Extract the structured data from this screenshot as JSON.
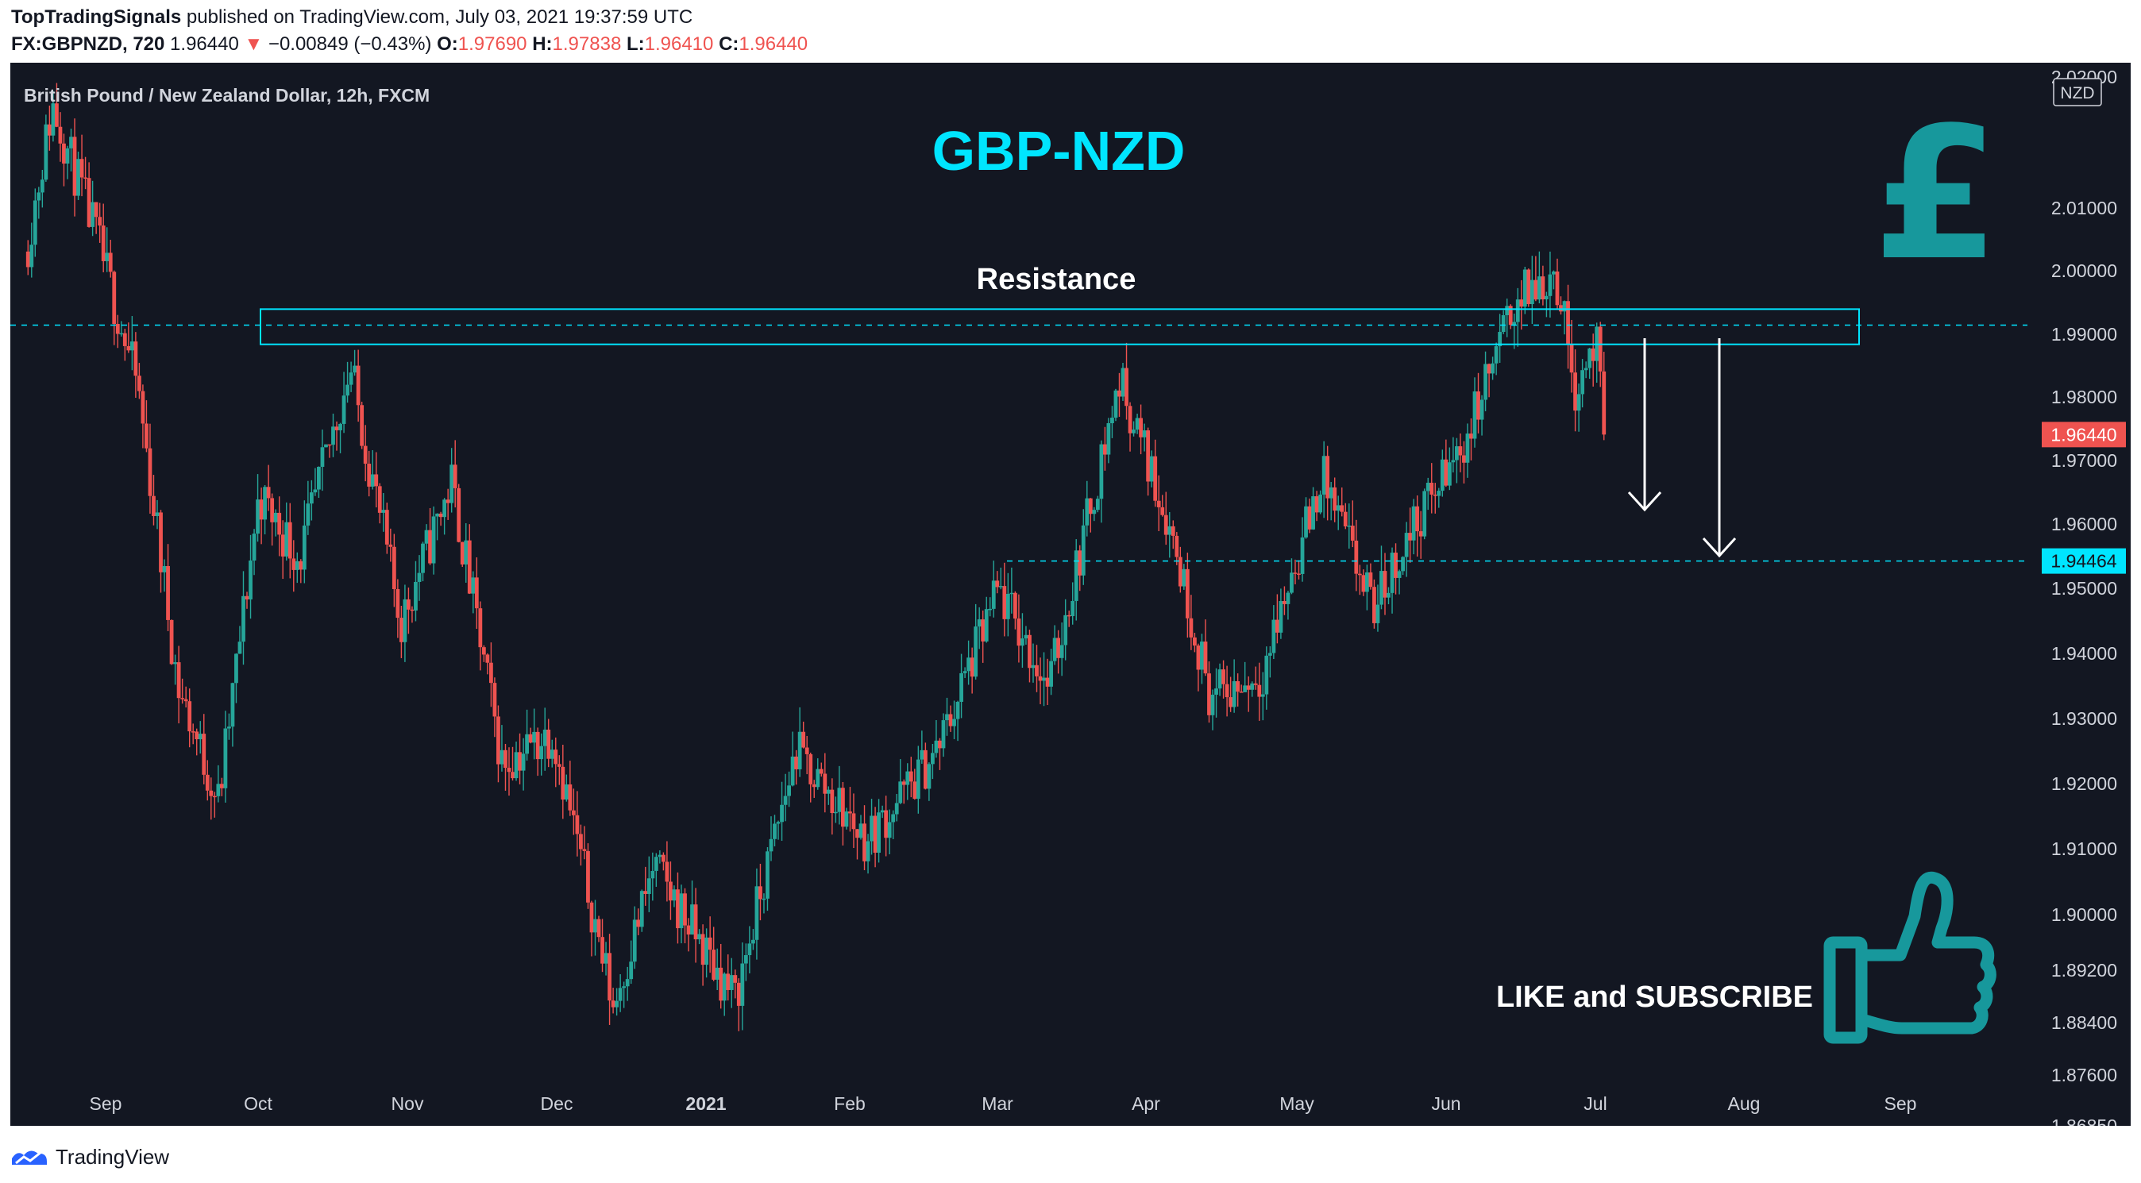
{
  "header": {
    "publisher": "TopTradingSignals",
    "published_text": " published on TradingView.com, July 03, 2021 19:37:59 UTC",
    "symbol": "FX:GBPNZD, 720",
    "price": "1.96440",
    "change_arrow": "▼",
    "change": "−0.00849 (−0.43%)",
    "o_label": "O:",
    "o_value": "1.97690",
    "h_label": "H:",
    "h_value": "1.97838",
    "l_label": "L:",
    "l_value": "1.96410",
    "c_label": "C:",
    "c_value": "1.96440"
  },
  "footer": {
    "brand": "TradingView"
  },
  "chart_data": {
    "type": "candlestick",
    "title": "GBP-NZD",
    "subtitle": "British Pound / New Zealand Dollar, 12h, FXCM",
    "currency_badge": "NZD",
    "y_axis": {
      "ticks": [
        "2.01000",
        "2.00000",
        "1.99000",
        "1.98000",
        "1.97000",
        "1.96000",
        "1.95000",
        "1.94000",
        "1.93000",
        "1.92000",
        "1.91000",
        "1.90000",
        "1.89200",
        "1.88400",
        "1.87600",
        "1.86850"
      ],
      "top_partial_tick": "2.02000"
    },
    "x_axis": {
      "ticks": [
        "Sep",
        "Oct",
        "Nov",
        "Dec",
        "2021",
        "Feb",
        "Mar",
        "Apr",
        "May",
        "Jun",
        "Jul",
        "Aug",
        "Sep"
      ],
      "bold_ticks": [
        "2021"
      ]
    },
    "anchors": [
      {
        "t": 0,
        "p": 1.993
      },
      {
        "t": 0.013,
        "p": 2.016
      },
      {
        "t": 0.035,
        "p": 1.995
      },
      {
        "t": 0.055,
        "p": 1.972
      },
      {
        "t": 0.075,
        "p": 1.925
      },
      {
        "t": 0.095,
        "p": 1.907
      },
      {
        "t": 0.115,
        "p": 1.955
      },
      {
        "t": 0.135,
        "p": 1.945
      },
      {
        "t": 0.16,
        "p": 1.975
      },
      {
        "t": 0.185,
        "p": 1.935
      },
      {
        "t": 0.21,
        "p": 1.957
      },
      {
        "t": 0.235,
        "p": 1.913
      },
      {
        "t": 0.26,
        "p": 1.918
      },
      {
        "t": 0.29,
        "p": 1.875
      },
      {
        "t": 0.31,
        "p": 1.897
      },
      {
        "t": 0.35,
        "p": 1.876
      },
      {
        "t": 0.38,
        "p": 1.915
      },
      {
        "t": 0.415,
        "p": 1.901
      },
      {
        "t": 0.45,
        "p": 1.915
      },
      {
        "t": 0.48,
        "p": 1.94
      },
      {
        "t": 0.505,
        "p": 1.925
      },
      {
        "t": 0.54,
        "p": 1.973
      },
      {
        "t": 0.565,
        "p": 1.95
      },
      {
        "t": 0.585,
        "p": 1.923
      },
      {
        "t": 0.61,
        "p": 1.927
      },
      {
        "t": 0.64,
        "p": 1.958
      },
      {
        "t": 0.665,
        "p": 1.937
      },
      {
        "t": 0.685,
        "p": 1.95
      },
      {
        "t": 0.71,
        "p": 1.963
      },
      {
        "t": 0.735,
        "p": 1.985
      },
      {
        "t": 0.755,
        "p": 1.99
      },
      {
        "t": 0.765,
        "p": 1.972
      },
      {
        "t": 0.775,
        "p": 1.979
      },
      {
        "t": 0.78,
        "p": 1.9644
      }
    ],
    "last_price": "1.96440",
    "target_price": "1.94464",
    "resistance": {
      "label": "Resistance",
      "low": 1.9785,
      "high": 1.984,
      "line": 1.9815
    },
    "support_line": 1.94464,
    "annotation": "LIKE and SUBSCRIBE",
    "colors": {
      "bull": "#26a69a",
      "bear": "#ef5350",
      "accent": "#00e5ff",
      "icon": "#17989c"
    }
  }
}
